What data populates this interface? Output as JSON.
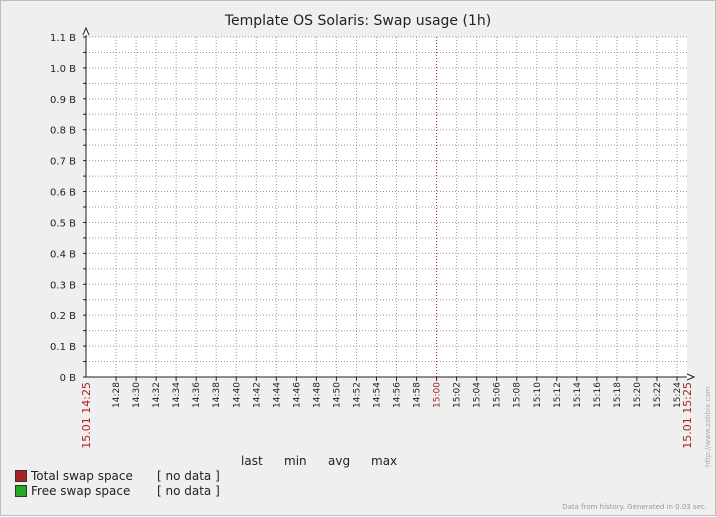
{
  "chart_data": {
    "type": "line",
    "title": "Template OS Solaris: Swap usage (1h)",
    "y_ticks": [
      "0 B",
      "0.1 B",
      "0.2 B",
      "0.3 B",
      "0.4 B",
      "0.5 B",
      "0.6 B",
      "0.7 B",
      "0.8 B",
      "0.9 B",
      "1.0 B",
      "1.1 B"
    ],
    "ylim": [
      0,
      1.1
    ],
    "x_start_label": "15.01 14:25",
    "x_end_label": "15.01 15:25",
    "x_ticks": [
      "14:28",
      "14:30",
      "14:32",
      "14:34",
      "14:36",
      "14:38",
      "14:40",
      "14:42",
      "14:44",
      "14:46",
      "14:48",
      "14:50",
      "14:52",
      "14:54",
      "14:56",
      "14:58",
      "15:00",
      "15:02",
      "15:04",
      "15:06",
      "15:08",
      "15:10",
      "15:12",
      "15:14",
      "15:16",
      "15:18",
      "15:20",
      "15:22",
      "15:24"
    ],
    "x_highlight_tick": "15:00",
    "xlim": [
      "14:25",
      "15:25"
    ],
    "grid": true,
    "series": [
      {
        "name": "Total swap space",
        "color": "#aa2222",
        "values": []
      },
      {
        "name": "Free swap space",
        "color": "#22aa22",
        "values": []
      }
    ]
  },
  "legend": {
    "headers": [
      "last",
      "min",
      "avg",
      "max"
    ],
    "items": [
      {
        "name": "Total swap space",
        "value": "[ no data ]",
        "color": "#aa2222"
      },
      {
        "name": "Free swap space",
        "value": "[ no data ]",
        "color": "#22aa22"
      }
    ]
  },
  "side_note": "http://www.zabbix.com",
  "footer_note": "Data from history. Generated in 0.03 sec."
}
